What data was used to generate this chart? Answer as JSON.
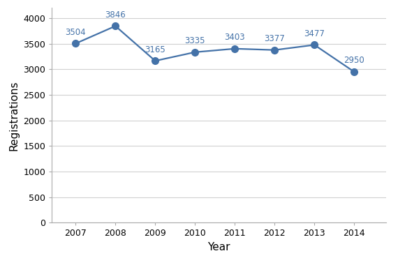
{
  "years": [
    2007,
    2008,
    2009,
    2010,
    2011,
    2012,
    2013,
    2014
  ],
  "values": [
    3504,
    3846,
    3165,
    3335,
    3403,
    3377,
    3477,
    2950
  ],
  "line_color": "#4472A8",
  "marker_color": "#4472A8",
  "xlabel": "Year",
  "ylabel": "Registrations",
  "ylim": [
    0,
    4200
  ],
  "yticks": [
    0,
    500,
    1000,
    1500,
    2000,
    2500,
    3000,
    3500,
    4000
  ],
  "background_color": "#ffffff",
  "plot_bg_color": "#ffffff",
  "grid_color": "#d0d0d0",
  "label_fontsize": 11,
  "annotation_fontsize": 8.5,
  "marker_size": 7,
  "line_width": 1.6
}
